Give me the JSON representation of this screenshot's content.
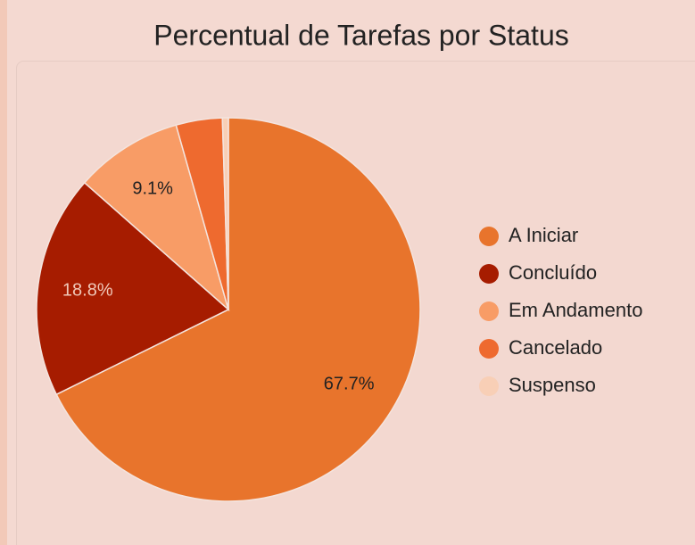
{
  "chart_data": {
    "type": "pie",
    "title": "Percentual de Tarefas por Status",
    "categories": [
      "A Iniciar",
      "Concluído",
      "Em Andamento",
      "Cancelado",
      "Suspenso"
    ],
    "values": [
      67.7,
      18.8,
      9.1,
      3.9,
      0.5
    ],
    "value_labels": [
      "67.7%",
      "18.8%",
      "9.1%",
      null,
      null
    ],
    "colors": [
      "#e8742c",
      "#a61c00",
      "#f89c66",
      "#ee6a2f",
      "#f8cfb6"
    ],
    "legend": "right"
  }
}
